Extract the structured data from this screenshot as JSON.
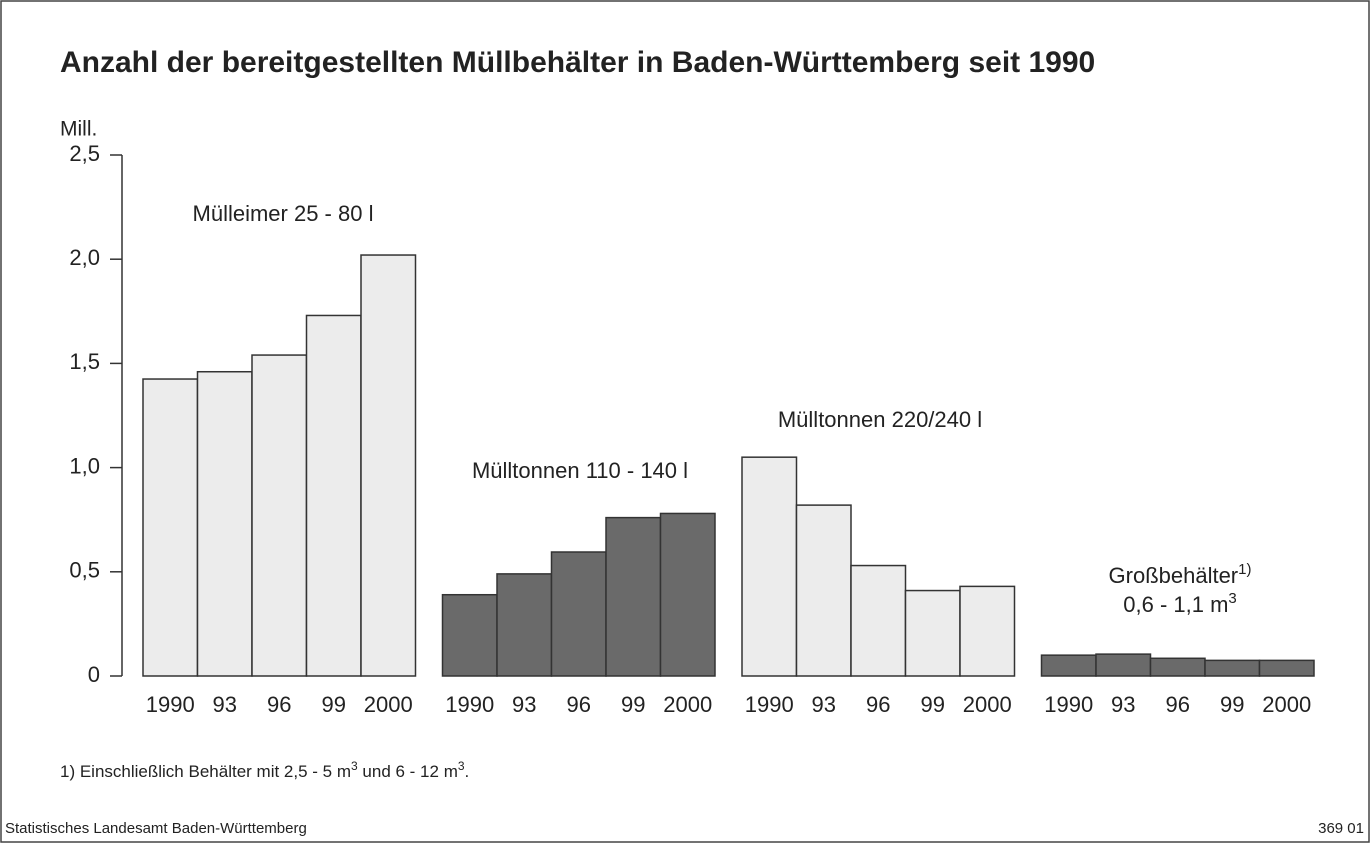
{
  "chart_data": {
    "type": "bar",
    "title": "Anzahl der bereitgestellten Müllbehälter in Baden-Württemberg seit 1990",
    "y_unit": "Mill.",
    "categories": [
      "1990",
      "93",
      "96",
      "99",
      "2000"
    ],
    "series": [
      {
        "name": "Mülleimer 25 - 80 l",
        "color": "#ececec",
        "values": [
          1.425,
          1.46,
          1.54,
          1.73,
          2.02
        ]
      },
      {
        "name": "Mülltonnen 110 - 140 l",
        "color": "#6a6a6a",
        "values": [
          0.39,
          0.49,
          0.595,
          0.76,
          0.78
        ]
      },
      {
        "name": "Mülltonnen 220/240 l",
        "color": "#ececec",
        "values": [
          1.05,
          0.82,
          0.53,
          0.41,
          0.43
        ]
      },
      {
        "name": "Großbehälter",
        "name_note": "1)",
        "name_line2": "0,6 - 1,1 m",
        "name_line2_sup": "3",
        "color": "#6a6a6a",
        "values": [
          0.1,
          0.105,
          0.085,
          0.075,
          0.075
        ]
      }
    ],
    "ylim": [
      0,
      2.5
    ],
    "yticks": [
      0,
      {
        "value": 0.5,
        "label": "0,5"
      },
      {
        "value": 1.0,
        "label": "1,0"
      },
      {
        "value": 1.5,
        "label": "1,5"
      },
      {
        "value": 2.0,
        "label": "2,0"
      },
      {
        "value": 2.5,
        "label": "2,5"
      }
    ],
    "footnote": [
      "1) Einschließlich Behälter mit 2,5 - 5 m",
      "3",
      " und 6 - 12 m",
      "3",
      "."
    ],
    "source": "Statistisches Landesamt Baden-Württemberg",
    "code": "369 01"
  }
}
